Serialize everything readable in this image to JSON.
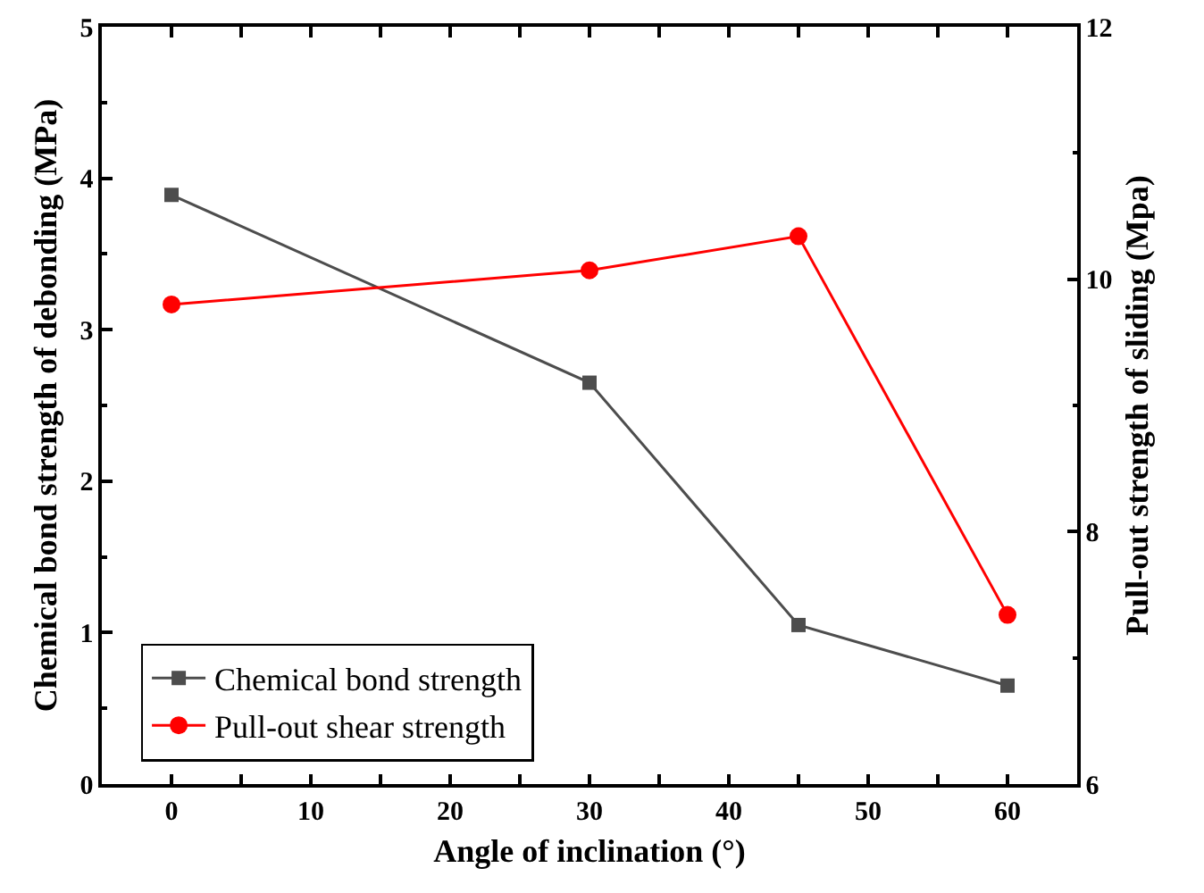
{
  "chart_data": {
    "type": "line",
    "xlabel": "Angle of inclination (°)",
    "ylabel": "Chemical bond strength of debonding (MPa)",
    "y2label": "Pull-out strength of sliding (Mpa)",
    "x": [
      0,
      30,
      45,
      60
    ],
    "series": [
      {
        "name": "Chemical bond strength",
        "color": "#4d4d4d",
        "marker": "square",
        "values": [
          3.89,
          2.65,
          1.05,
          0.65
        ]
      },
      {
        "name": "Pull-out shear strength",
        "color": "#ff0000",
        "marker": "circle",
        "axis": "y2",
        "values": [
          9.8,
          10.07,
          10.34,
          7.34
        ]
      }
    ],
    "xlim": [
      -5,
      65
    ],
    "xticks": [
      0,
      10,
      20,
      30,
      40,
      50,
      60
    ],
    "ylim": [
      0,
      5
    ],
    "yticks": [
      0,
      1,
      2,
      3,
      4,
      5
    ],
    "y2lim": [
      6,
      12
    ],
    "y2ticks": [
      6,
      8,
      10,
      12
    ],
    "grid": false,
    "legend": "bottom left",
    "line_style": "solid"
  }
}
